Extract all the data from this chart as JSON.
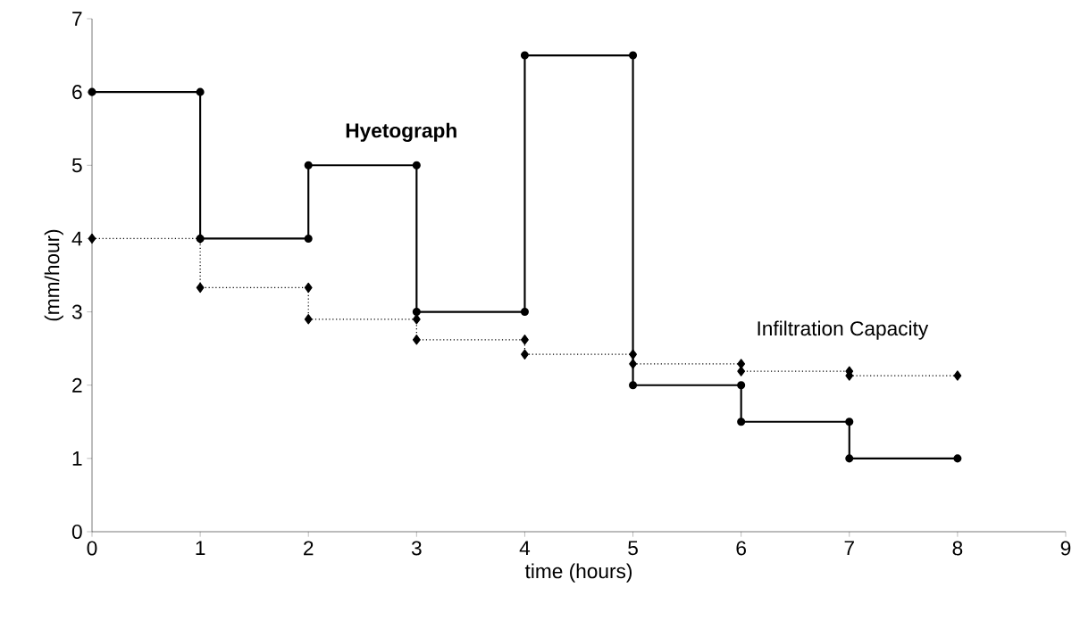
{
  "chart_data": {
    "type": "line",
    "xlabel": "time (hours)",
    "ylabel": "(mm/hour)",
    "xlim": [
      0,
      9
    ],
    "xticks": [
      0,
      1,
      2,
      3,
      4,
      5,
      6,
      7,
      8,
      9
    ],
    "ylim": [
      0,
      7
    ],
    "yticks": [
      0,
      1,
      2,
      3,
      4,
      5,
      6,
      7
    ],
    "grid": false,
    "legend": false,
    "series": [
      {
        "name": "**Hyetograph**",
        "color": "#000000",
        "marker": "circle",
        "line_style": "solid",
        "x": [
          0,
          1,
          1,
          2,
          2,
          3,
          3,
          4,
          4,
          5,
          5,
          6,
          6,
          7,
          7,
          8
        ],
        "values": [
          6,
          6,
          4,
          4,
          5,
          5,
          3,
          3,
          6.5,
          6.5,
          2,
          2,
          1.5,
          1.5,
          1,
          1
        ]
      },
      {
        "name": "Infiltration Capacity",
        "color": "#000000",
        "marker": "diamond",
        "line_style": "dotted",
        "x": [
          0,
          1,
          1,
          2,
          2,
          3,
          3,
          4,
          4,
          5,
          5,
          6,
          6,
          7,
          7,
          8
        ],
        "values": [
          4,
          4,
          3.33,
          3.33,
          2.9,
          2.9,
          2.62,
          2.62,
          2.42,
          2.42,
          2.29,
          2.29,
          2.19,
          2.19,
          2.13,
          2.13
        ]
      }
    ]
  }
}
